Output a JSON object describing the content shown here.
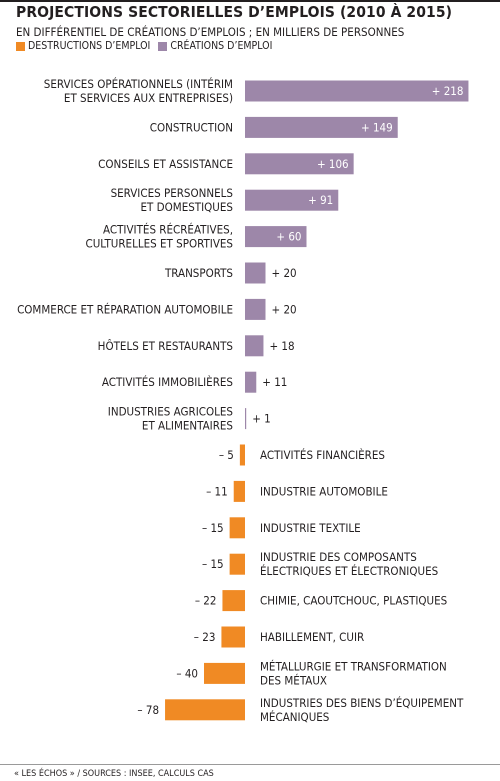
{
  "title": "PROJECTIONS SECTORIELLES D’EMPLOIS (2010 À 2015)",
  "subtitle": "EN DIFFÉRENTIEL DE CRÉATIONS D’EMPLOIS ; EN MILLIERS DE PERSONNES",
  "legend": {
    "destructions": "DESTRUCTIONS D’EMPLOI",
    "creations": "CRÉATIONS D’EMPLOI"
  },
  "colors": {
    "creations": "#9d87a9",
    "destructions": "#f08a24"
  },
  "footer": "« LES ÉCHOS » / SOURCES : INSEE, CALCULS CAS",
  "chart_data": {
    "type": "bar",
    "orientation": "horizontal",
    "title": "PROJECTIONS SECTORIELLES D’EMPLOIS (2010 À 2015)",
    "subtitle": "EN DIFFÉRENTIEL DE CRÉATIONS D’EMPLOIS ; EN MILLIERS DE PERSONNES",
    "series": [
      {
        "name": "CRÉATIONS D’EMPLOI",
        "color": "#9d87a9"
      },
      {
        "name": "DESTRUCTIONS D’EMPLOI",
        "color": "#f08a24"
      }
    ],
    "items": [
      {
        "category": [
          "SERVICES OPÉRATIONNELS (INTÉRIM",
          "ET SERVICES AUX ENTREPRISES)"
        ],
        "value": 218,
        "value_label": "+ 218"
      },
      {
        "category": [
          "CONSTRUCTION"
        ],
        "value": 149,
        "value_label": "+ 149"
      },
      {
        "category": [
          "CONSEILS ET ASSISTANCE"
        ],
        "value": 106,
        "value_label": "+ 106"
      },
      {
        "category": [
          "SERVICES PERSONNELS",
          "ET DOMESTIQUES"
        ],
        "value": 91,
        "value_label": "+ 91"
      },
      {
        "category": [
          "ACTIVITÉS RÉCRÉATIVES,",
          "CULTURELLES ET SPORTIVES"
        ],
        "value": 60,
        "value_label": "+ 60"
      },
      {
        "category": [
          "TRANSPORTS"
        ],
        "value": 20,
        "value_label": "+ 20"
      },
      {
        "category": [
          "COMMERCE ET RÉPARATION AUTOMOBILE"
        ],
        "value": 20,
        "value_label": "+ 20"
      },
      {
        "category": [
          "HÔTELS ET RESTAURANTS"
        ],
        "value": 18,
        "value_label": "+ 18"
      },
      {
        "category": [
          "ACTIVITÉS IMMOBILIÈRES"
        ],
        "value": 11,
        "value_label": "+ 11"
      },
      {
        "category": [
          "INDUSTRIES AGRICOLES",
          "ET ALIMENTAIRES"
        ],
        "value": 1,
        "value_label": "+ 1"
      },
      {
        "category": [
          "ACTIVITÉS FINANCIÈRES"
        ],
        "value": -5,
        "value_label": "– 5"
      },
      {
        "category": [
          "INDUSTRIE AUTOMOBILE"
        ],
        "value": -11,
        "value_label": "– 11"
      },
      {
        "category": [
          "INDUSTRIE TEXTILE"
        ],
        "value": -15,
        "value_label": "– 15"
      },
      {
        "category": [
          "INDUSTRIE DES COMPOSANTS",
          "ÉLECTRIQUES ET ÉLECTRONIQUES"
        ],
        "value": -15,
        "value_label": "– 15"
      },
      {
        "category": [
          "CHIMIE, CAOUTCHOUC, PLASTIQUES"
        ],
        "value": -22,
        "value_label": "– 22"
      },
      {
        "category": [
          "HABILLEMENT, CUIR"
        ],
        "value": -23,
        "value_label": "– 23"
      },
      {
        "category": [
          "MÉTALLURGIE ET TRANSFORMATION",
          "DES MÉTAUX"
        ],
        "value": -40,
        "value_label": "– 40"
      },
      {
        "category": [
          "INDUSTRIES DES BIENS D’ÉQUIPEMENT",
          "MÉCANIQUES"
        ],
        "value": -78,
        "value_label": "– 78"
      }
    ]
  }
}
